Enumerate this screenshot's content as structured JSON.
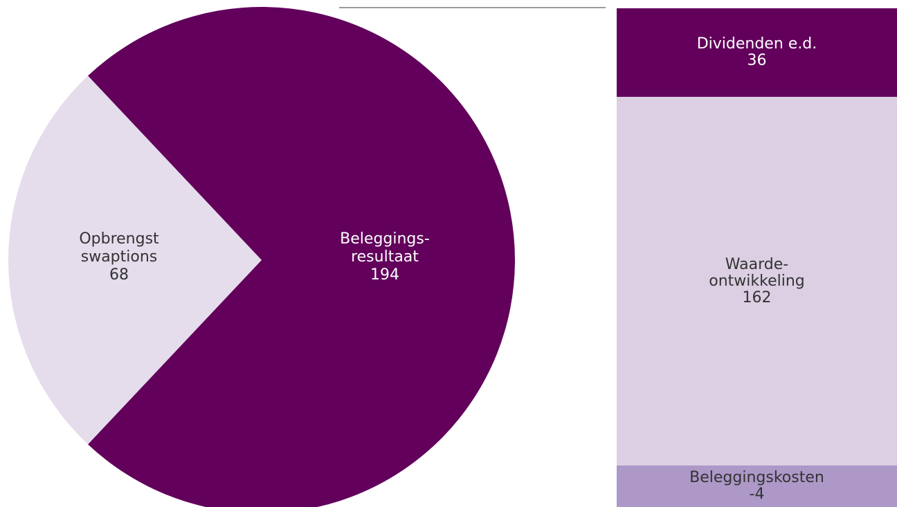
{
  "chart_data": [
    {
      "type": "pie",
      "slices": [
        {
          "label": "Opbrengst swaptions",
          "label_lines": [
            "Opbrengst",
            "swaptions"
          ],
          "value": 68,
          "color": "#e5dcec",
          "text_color": "#333333"
        },
        {
          "label": "Beleggings-resultaat",
          "label_lines": [
            "Beleggings-",
            "resultaat"
          ],
          "value": 194,
          "color": "#62005b",
          "text_color": "#ffffff"
        }
      ]
    },
    {
      "type": "bar",
      "stacked": true,
      "segments": [
        {
          "label": "Dividenden e.d.",
          "label_lines": [
            "Dividenden e.d."
          ],
          "value": 36,
          "color": "#62005b",
          "text_color": "#ffffff"
        },
        {
          "label": "Waarde-ontwikkeling",
          "label_lines": [
            "Waarde-",
            "ontwikkeling"
          ],
          "value": 162,
          "color": "#dccfe3",
          "text_color": "#333333"
        },
        {
          "label": "Beleggingskosten",
          "label_lines": [
            "Beleggingskosten"
          ],
          "value": -4,
          "color": "#ad98c8",
          "text_color": "#333333"
        }
      ]
    }
  ]
}
